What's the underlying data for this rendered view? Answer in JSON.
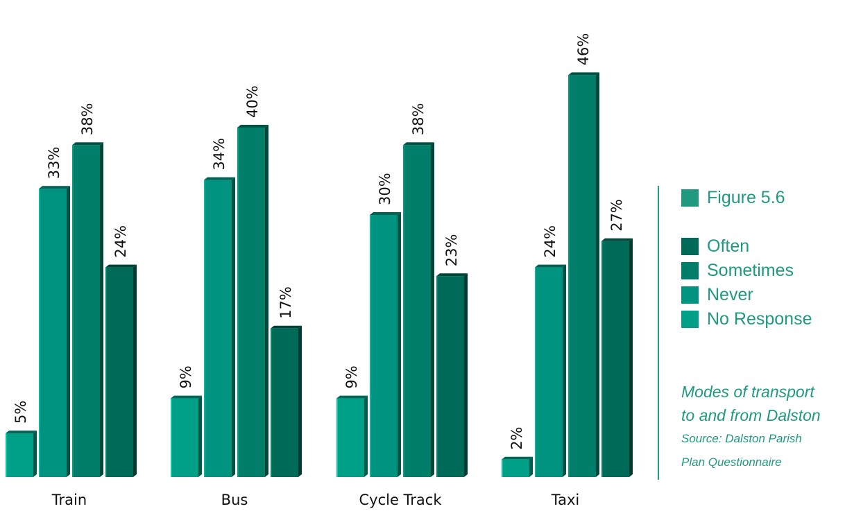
{
  "chart_data": {
    "type": "bar",
    "categories": [
      "Train",
      "Bus",
      "Cycle Track",
      "Taxi"
    ],
    "series": [
      {
        "name": "No Response",
        "values": [
          5,
          9,
          9,
          2
        ],
        "labels": [
          "5%",
          "9%",
          "9%",
          "2%"
        ]
      },
      {
        "name": "Never",
        "values": [
          33,
          34,
          30,
          24
        ],
        "labels": [
          "33%",
          "34%",
          "30%",
          "24%"
        ]
      },
      {
        "name": "Sometimes",
        "values": [
          38,
          40,
          38,
          46
        ],
        "labels": [
          "38%",
          "40%",
          "38%",
          "46%"
        ]
      },
      {
        "name": "Often",
        "values": [
          24,
          17,
          23,
          27
        ],
        "labels": [
          "24%",
          "17%",
          "23%",
          "27%"
        ]
      }
    ],
    "ylim": [
      0,
      50
    ],
    "grid": false,
    "legend_placement": "right",
    "colors": {
      "No Response": "#00a088",
      "Never": "#009480",
      "Sometimes": "#007e6a",
      "Often": "#006a58"
    }
  },
  "legend": {
    "figure_label": "Figure 5.6",
    "items": [
      "Often",
      "Sometimes",
      "Never",
      "No Response"
    ]
  },
  "caption": {
    "line1": "Modes of transport",
    "line2": "to and from Dalston",
    "source1": "Source: Dalston Parish",
    "source2": "Plan Questionnaire"
  },
  "colors": {
    "accent_text": "#1f9a80",
    "divider": "#2a9a82"
  }
}
